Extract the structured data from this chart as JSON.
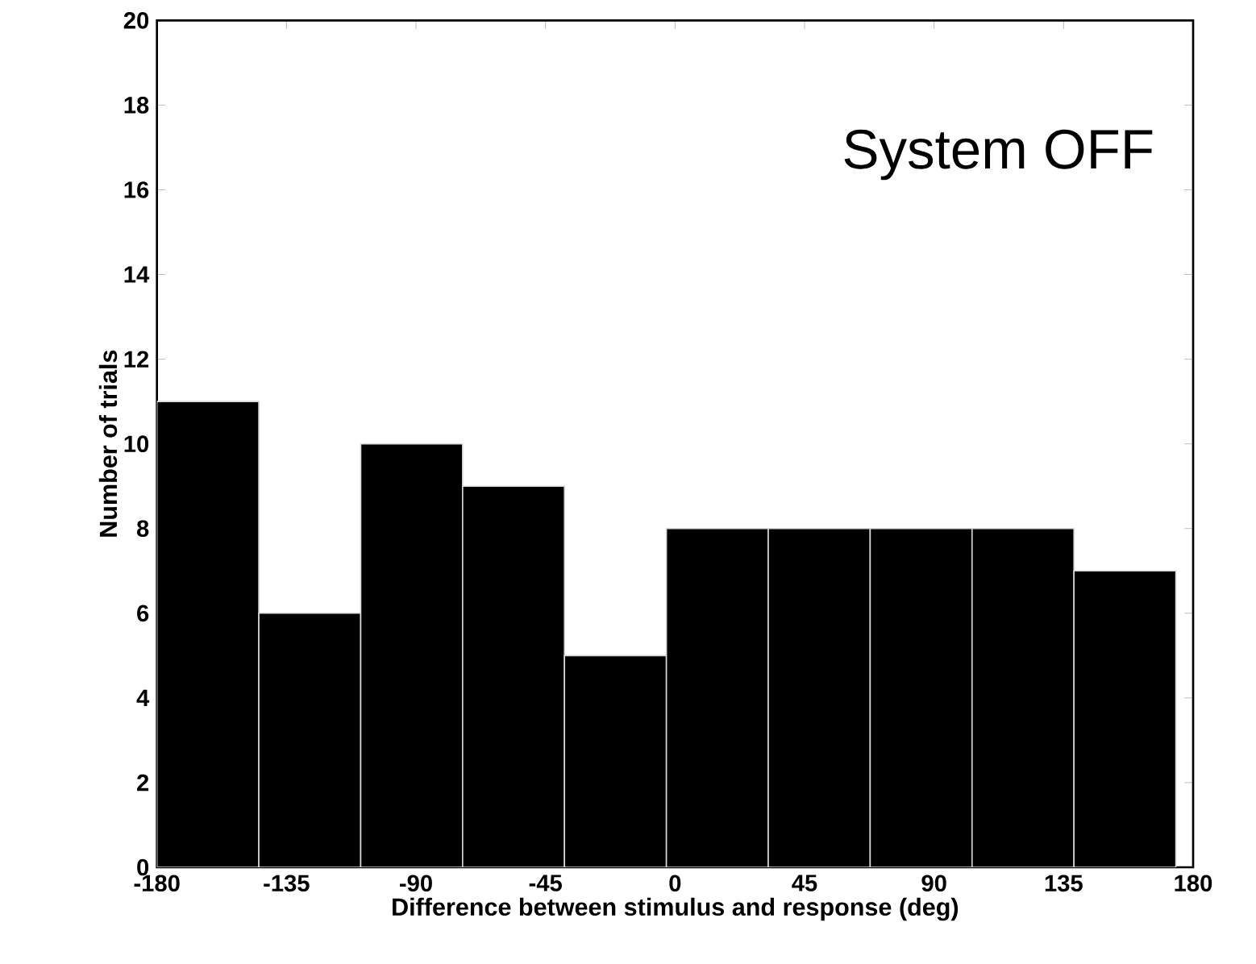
{
  "chart_data": {
    "type": "histogram",
    "xlabel": "Difference between stimulus and response (deg)",
    "ylabel": "Number of trials",
    "annotations": [
      "System OFF"
    ],
    "bins": [
      -180,
      -144.6,
      -109.2,
      -73.8,
      -38.4,
      -3,
      32.4,
      67.8,
      103.2,
      138.6,
      174
    ],
    "values": [
      11,
      6,
      10,
      9,
      5,
      8,
      8,
      8,
      8,
      7
    ],
    "color": "#000000",
    "xlim": [
      -180,
      180
    ],
    "xticks": [
      -180,
      -135,
      -90,
      -45,
      0,
      45,
      90,
      135,
      180
    ],
    "ylim": [
      0,
      20
    ],
    "yticks": [
      0,
      2,
      4,
      6,
      8,
      10,
      12,
      14,
      16,
      18,
      20
    ],
    "grid": false
  }
}
